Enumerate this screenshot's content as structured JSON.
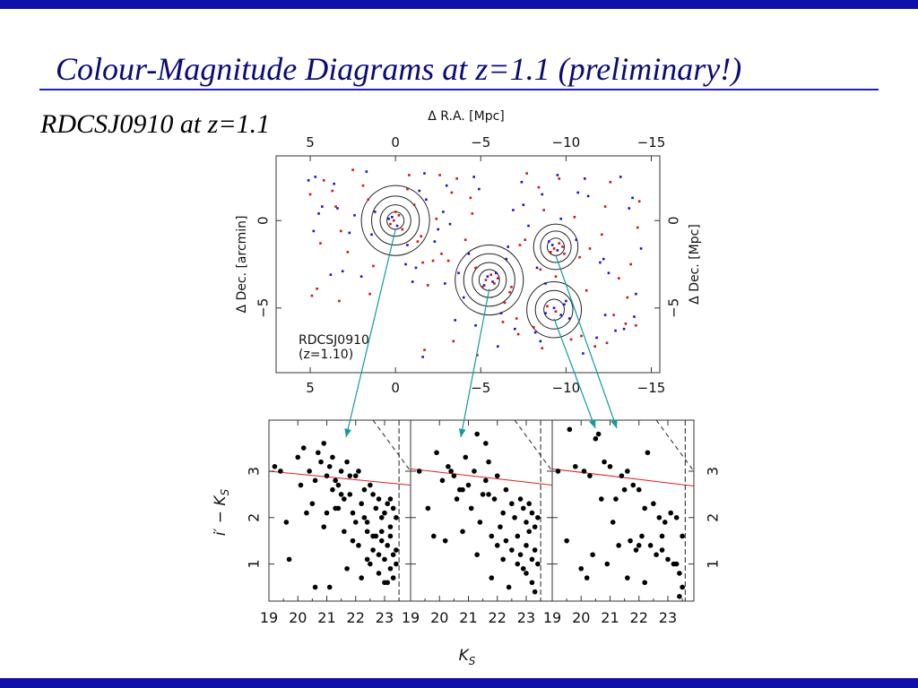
{
  "slide": {
    "title": "Colour-Magnitude Diagrams at z=1.1 (preliminary!)",
    "subtitle": "RDCSJ0910 at z=1.1",
    "colors": {
      "band": "#1010a8",
      "title_text": "#0b0b78",
      "title_rule": "#1c1ccc"
    }
  },
  "chart_data": [
    {
      "type": "scatter",
      "name": "sky-map",
      "x_top_label": "Δ R.A.  [Mpc]",
      "x_top_ticks": [
        5,
        0,
        -5,
        -10,
        -15
      ],
      "x_bottom_ticks": [
        5,
        0,
        -5,
        -10,
        -15
      ],
      "y_left_label": "Δ Dec.  [arcmin]",
      "y_left_ticks": [
        0,
        -5
      ],
      "y_right_label": "Δ Dec.  [Mpc]",
      "y_right_ticks": [
        0,
        -5
      ],
      "xlim": [
        7,
        -15.5
      ],
      "ylim": [
        -8.7,
        3.7
      ],
      "annotation": [
        "RDCSJ0910",
        "(z=1.10)"
      ],
      "series": [
        {
          "color": "#d81010",
          "x": [
            5,
            4.2,
            3.5,
            2.8,
            1.6,
            -0.8,
            -1.5,
            -2.2,
            -3.3,
            -4.5,
            -6.8,
            -7.6,
            -8.4,
            -9.4,
            -10.5,
            -11.4,
            -12.6,
            -13.6,
            -14.3,
            4.6,
            3.2,
            2.5,
            1.5,
            -1.1,
            -1.9,
            -2.7,
            -3.6,
            -4.7,
            -6.7,
            -7.3,
            -8.7,
            -9.6,
            -10.8,
            -12.1,
            -13.1,
            -14.2,
            4.4,
            3.3,
            1.9,
            -1.3,
            -2.4,
            -3.1,
            -4.4,
            -6.4,
            -7.7,
            -8.5,
            -9.9,
            -11.2,
            -12.3,
            -13.8,
            4.9,
            3.7,
            1.3,
            -0.7,
            -1.6,
            -2.6,
            -4.1,
            -6.3,
            -7.2,
            -8.1,
            -10.3,
            -11.7,
            -12.8,
            -14.1,
            -1.7,
            -3.4,
            -4.8,
            -7.1,
            -8.6,
            -10.9,
            -12.4,
            -13.5,
            0.1,
            -0.2,
            0.3,
            0.0,
            -0.4,
            -5.3,
            -5.8,
            -5.6,
            -5.1,
            -6.0,
            -9.3,
            -9.6,
            -9.1,
            -9.8,
            -9.4,
            -8.9
          ],
          "y": [
            1.5,
            2.3,
            0.8,
            -1.8,
            1.2,
            2.6,
            -0.9,
            -2.3,
            1.6,
            0.4,
            -3.8,
            -1.1,
            1.9,
            -3.2,
            0.2,
            -1.6,
            2.2,
            -4.4,
            1.1,
            -3.9,
            -0.6,
            2.9,
            -4.2,
            0.9,
            -3.7,
            -1.9,
            2.4,
            -2.7,
            -4.1,
            -1.4,
            0.6,
            2.4,
            -2.1,
            -0.8,
            -3.3,
            -0.4,
            -1.3,
            -4.6,
            2.0,
            -1.2,
            0.1,
            -2.3,
            1.3,
            -4.7,
            2.7,
            -2.8,
            -1.9,
            -4.0,
            0.8,
            -2.5,
            -4.3,
            1.7,
            -2.6,
            1.8,
            -2.4,
            2.6,
            -1.1,
            -5.8,
            -6.5,
            -6.1,
            -6.8,
            -7.2,
            -5.4,
            -6.0,
            -7.4,
            -6.9,
            -7.7,
            -5.6,
            -7.3,
            -6.6,
            -7.0,
            -5.9,
            0.0,
            0.3,
            -0.2,
            0.5,
            -0.5,
            -3.4,
            -3.6,
            -3.1,
            -3.8,
            -3.3,
            -1.6,
            -1.3,
            -1.8,
            -1.5,
            -5.2,
            -4.9
          ]
        },
        {
          "color": "#1414d0",
          "x": [
            5.1,
            4.3,
            3.6,
            2.7,
            1.7,
            -0.7,
            -1.4,
            -2.3,
            -3.2,
            -4.6,
            -6.6,
            -7.5,
            -8.3,
            -9.5,
            -10.6,
            -11.3,
            -12.5,
            -13.7,
            -14.4,
            4.5,
            3.1,
            2.4,
            1.4,
            -1.0,
            -1.8,
            -2.8,
            -3.7,
            -4.9,
            -6.9,
            -7.4,
            -8.8,
            -9.7,
            -10.7,
            -12.0,
            -13.2,
            -14.1,
            4.7,
            3.4,
            2.0,
            -1.2,
            -2.5,
            -3.0,
            -4.3,
            -6.5,
            -7.8,
            -8.6,
            -10.0,
            -11.1,
            -12.2,
            -13.9,
            4.8,
            3.8,
            1.2,
            -0.6,
            -1.7,
            -2.9,
            -4.0,
            -6.2,
            -7.0,
            -8.2,
            -10.2,
            -11.8,
            -12.9,
            -14.0,
            -1.6,
            -3.5,
            -4.7,
            -6.0,
            -8.5,
            -11.0,
            -12.3,
            -13.4,
            0.2,
            -0.1,
            0.4,
            -5.4,
            -5.7,
            -5.2,
            -5.9,
            -9.2,
            -9.5,
            -9.0,
            -9.7,
            -9.3,
            -8.8,
            -9.9
          ],
          "y": [
            2.3,
            0.8,
            2.1,
            -0.7,
            2.8,
            -1.4,
            1.7,
            -1.2,
            -0.2,
            2.5,
            -1.5,
            0.9,
            -2.7,
            2.6,
            -1.1,
            1.4,
            -3.0,
            0.7,
            -1.6,
            0.4,
            -2.9,
            0.3,
            -0.8,
            -3.5,
            1.2,
            0.5,
            -3.0,
            1.8,
            0.6,
            2.2,
            -3.6,
            0.1,
            1.6,
            -2.4,
            2.5,
            -4.2,
            2.5,
            0.7,
            -3.2,
            -2.7,
            -0.5,
            2.0,
            -1.9,
            -2.2,
            -0.3,
            1.5,
            -4.6,
            2.4,
            -2.2,
            1.3,
            -0.6,
            -3.1,
            0.5,
            -2.5,
            2.7,
            -3.6,
            -4.4,
            -5.3,
            -6.2,
            -6.4,
            -5.6,
            -6.7,
            -6.3,
            -5.5,
            -7.8,
            -5.7,
            -6.0,
            -7.2,
            -6.9,
            -7.6,
            -5.4,
            -6.2,
            0.2,
            -0.3,
            0.1,
            -3.2,
            -3.5,
            -3.7,
            -3.0,
            -1.4,
            -1.7,
            -1.2,
            -5.4,
            -5.0,
            -5.3,
            -4.8
          ]
        }
      ],
      "contours": [
        {
          "cx": 0.0,
          "cy": 0.0,
          "r": [
            0.5,
            0.9,
            1.4,
            2.0
          ]
        },
        {
          "cx": -5.5,
          "cy": -3.4,
          "r": [
            0.6,
            1.0,
            1.5,
            2.0
          ]
        },
        {
          "cx": -9.4,
          "cy": -1.5,
          "r": [
            0.5,
            0.9,
            1.3
          ]
        },
        {
          "cx": -9.3,
          "cy": -5.1,
          "r": [
            0.6,
            1.1,
            1.6
          ]
        }
      ]
    },
    {
      "type": "scatter",
      "name": "cmd-panels",
      "xlabel": "K_S",
      "ylabel": "i′ − K_S",
      "xlim": [
        19,
        23.9
      ],
      "ylim": [
        0.2,
        4.1
      ],
      "x_ticks": [
        19,
        20,
        21,
        22,
        23
      ],
      "y_ticks": [
        1,
        2,
        3
      ],
      "panels": [
        {
          "red_sequence": {
            "x": [
              19,
              23.9
            ],
            "y": [
              3.0,
              2.7
            ]
          },
          "dashed_diagonal": {
            "x": [
              22.6,
              23.9
            ],
            "y": [
              4.1,
              3.0
            ]
          },
          "limit_x": 23.5,
          "x": [
            19.2,
            19.4,
            19.7,
            20.0,
            20.2,
            20.4,
            20.6,
            20.8,
            20.9,
            21.0,
            21.1,
            21.2,
            21.3,
            21.4,
            21.5,
            21.6,
            21.7,
            21.8,
            21.9,
            22.0,
            22.1,
            22.2,
            22.3,
            22.4,
            22.5,
            22.6,
            22.7,
            22.8,
            22.9,
            23.0,
            23.1,
            23.2,
            23.3,
            23.4,
            20.1,
            20.5,
            20.7,
            20.9,
            21.0,
            21.2,
            21.3,
            21.5,
            21.6,
            21.8,
            21.9,
            22.0,
            22.1,
            22.3,
            22.4,
            22.6,
            22.7,
            22.8,
            22.9,
            23.0,
            23.1,
            23.2,
            23.3,
            23.4,
            21.7,
            22.2,
            22.5,
            22.8,
            23.0,
            23.2,
            23.3,
            19.6,
            20.3,
            21.4,
            22.6,
            23.1,
            20.6,
            21.1,
            22.4,
            23.4,
            22.9,
            23.2
          ],
          "y": [
            3.1,
            3.0,
            1.1,
            3.3,
            3.5,
            3.0,
            2.8,
            3.2,
            1.8,
            2.9,
            3.1,
            2.6,
            2.2,
            2.7,
            3.0,
            2.4,
            3.2,
            2.5,
            2.1,
            2.9,
            3.0,
            2.3,
            2.6,
            1.9,
            2.7,
            2.5,
            2.2,
            2.4,
            2.0,
            2.1,
            2.3,
            1.8,
            2.2,
            2.0,
            2.7,
            2.3,
            3.4,
            3.6,
            2.1,
            3.3,
            2.8,
            2.5,
            1.7,
            2.9,
            1.5,
            1.9,
            1.4,
            2.0,
            1.7,
            1.3,
            1.6,
            1.2,
            1.5,
            1.1,
            1.4,
            1.6,
            1.2,
            1.0,
            0.9,
            0.7,
            1.0,
            0.8,
            0.6,
            0.9,
            0.7,
            1.9,
            2.1,
            2.2,
            1.6,
            0.6,
            0.5,
            0.5,
            1.1,
            1.3,
            1.7,
            2.4
          ]
        },
        {
          "red_sequence": {
            "x": [
              19,
              23.9
            ],
            "y": [
              3.05,
              2.7
            ]
          },
          "dashed_diagonal": {
            "x": [
              22.6,
              23.9
            ],
            "y": [
              4.1,
              3.0
            ]
          },
          "limit_x": 23.5,
          "x": [
            19.3,
            19.6,
            19.9,
            20.1,
            20.3,
            20.5,
            20.7,
            20.9,
            21.0,
            21.2,
            21.3,
            21.5,
            21.6,
            21.7,
            21.9,
            22.0,
            22.2,
            22.3,
            22.5,
            22.6,
            22.8,
            22.9,
            23.0,
            23.1,
            23.2,
            23.3,
            23.4,
            20.2,
            20.6,
            20.8,
            21.1,
            21.4,
            21.6,
            21.8,
            22.0,
            22.1,
            22.3,
            22.5,
            22.7,
            22.8,
            23.0,
            23.2,
            23.3,
            23.4,
            21.8,
            22.4,
            22.7,
            23.0,
            23.2,
            23.3,
            19.8,
            20.4,
            21.3,
            22.2,
            22.9,
            20.8,
            21.7,
            23.1
          ],
          "y": [
            3.0,
            2.2,
            3.4,
            2.8,
            3.1,
            2.9,
            2.6,
            3.3,
            2.7,
            3.0,
            3.8,
            2.5,
            2.8,
            3.2,
            2.4,
            2.9,
            2.1,
            2.6,
            2.3,
            2.0,
            2.4,
            2.2,
            1.9,
            2.3,
            2.1,
            1.8,
            2.0,
            1.5,
            2.4,
            1.7,
            2.2,
            1.9,
            3.6,
            1.6,
            1.4,
            1.8,
            1.5,
            1.3,
            1.6,
            1.2,
            1.4,
            1.1,
            1.3,
            1.0,
            0.7,
            0.5,
            1.0,
            0.8,
            0.6,
            0.4,
            1.6,
            3.0,
            1.2,
            1.1,
            0.9,
            2.6,
            2.5,
            1.7
          ]
        },
        {
          "red_sequence": {
            "x": [
              19,
              23.9
            ],
            "y": [
              3.05,
              2.68
            ]
          },
          "dashed_diagonal": {
            "x": [
              22.6,
              23.9
            ],
            "y": [
              4.1,
              3.0
            ]
          },
          "limit_x": 23.6,
          "x": [
            19.2,
            19.5,
            19.8,
            20.1,
            20.3,
            20.5,
            20.8,
            21.0,
            21.2,
            21.4,
            21.6,
            21.8,
            22.0,
            22.2,
            22.3,
            22.5,
            22.7,
            22.9,
            23.1,
            23.3,
            23.5,
            20.0,
            20.4,
            20.7,
            21.1,
            21.3,
            21.5,
            21.7,
            21.9,
            22.1,
            22.4,
            22.6,
            22.8,
            23.0,
            23.2,
            23.4,
            23.5,
            20.2,
            20.9,
            21.6,
            22.2,
            22.8,
            23.4,
            19.6,
            20.6,
            22.0,
            23.3
          ],
          "y": [
            3.0,
            1.5,
            3.1,
            3.0,
            2.9,
            3.7,
            3.2,
            3.1,
            2.4,
            2.9,
            3.0,
            2.7,
            2.6,
            2.2,
            3.4,
            2.3,
            2.0,
            1.9,
            2.1,
            2.0,
            1.6,
            0.9,
            1.2,
            2.4,
            1.9,
            1.4,
            2.6,
            1.5,
            1.3,
            1.6,
            1.4,
            1.2,
            1.3,
            1.1,
            1.0,
            0.8,
            0.5,
            0.7,
            1.0,
            0.7,
            0.6,
            1.6,
            0.3,
            3.9,
            3.8,
            1.4,
            1.0
          ]
        }
      ]
    }
  ]
}
